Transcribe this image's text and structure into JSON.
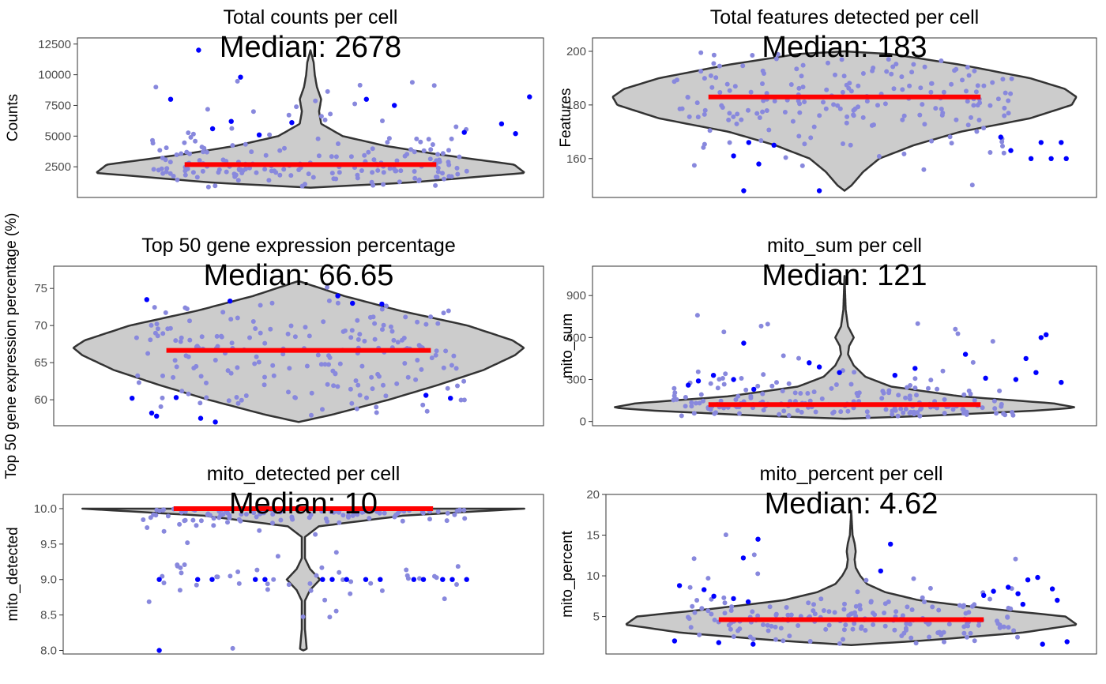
{
  "colors": {
    "violin_fill": "#cccccc",
    "violin_stroke": "#333333",
    "median_line": "#ff0000",
    "outlier_point": "#0000ff",
    "inlier_point": "#8888dd",
    "panel_border": "#333333"
  },
  "chart_data": [
    {
      "type": "violin",
      "title": "Total counts per cell",
      "ylabel": "Counts",
      "median_label": "Median: 2678",
      "median": 2678,
      "ylim": [
        0,
        13000
      ],
      "yticks": [
        2500,
        5000,
        7500,
        10000,
        12500
      ],
      "ytick_labels": [
        "2500",
        "5000",
        "7500",
        "10000",
        "12500"
      ],
      "density_profile": [
        [
          800,
          0.0
        ],
        [
          1200,
          0.45
        ],
        [
          2000,
          1.0
        ],
        [
          2678,
          0.95
        ],
        [
          3500,
          0.6
        ],
        [
          4200,
          0.35
        ],
        [
          5000,
          0.15
        ],
        [
          6000,
          0.05
        ],
        [
          7000,
          0.04
        ],
        [
          8000,
          0.05
        ],
        [
          9000,
          0.03
        ],
        [
          10000,
          0.02
        ],
        [
          11000,
          0.015
        ],
        [
          12000,
          0.0
        ]
      ],
      "outliers": [
        [
          -0.24,
          12000
        ],
        [
          -0.15,
          9800
        ],
        [
          0.12,
          8000
        ],
        [
          0.47,
          8200
        ],
        [
          -0.11,
          5100
        ],
        [
          -0.21,
          5600
        ],
        [
          -0.17,
          6200
        ],
        [
          -0.04,
          6100
        ],
        [
          0.41,
          6000
        ],
        [
          0.44,
          5200
        ],
        [
          0.33,
          5300
        ],
        [
          0.18,
          7500
        ],
        [
          -0.3,
          8000
        ]
      ],
      "inlier_count": 190
    },
    {
      "type": "violin",
      "title": "Total features detected per cell",
      "ylabel": "Features",
      "median_label": "Median: 183",
      "median": 183,
      "ylim": [
        145.5,
        205
      ],
      "yticks": [
        160,
        180,
        200
      ],
      "ytick_labels": [
        "160",
        "180",
        "200"
      ],
      "density_profile": [
        [
          148,
          0.0
        ],
        [
          150,
          0.03
        ],
        [
          155,
          0.08
        ],
        [
          160,
          0.15
        ],
        [
          165,
          0.3
        ],
        [
          170,
          0.5
        ],
        [
          175,
          0.8
        ],
        [
          180,
          0.98
        ],
        [
          183,
          1.0
        ],
        [
          186,
          0.95
        ],
        [
          190,
          0.8
        ],
        [
          195,
          0.5
        ],
        [
          199,
          0.2
        ],
        [
          200,
          0.0
        ]
      ],
      "outliers": [
        [
          -0.2,
          148
        ],
        [
          -0.05,
          148
        ],
        [
          -0.17,
          158
        ],
        [
          -0.22,
          161
        ],
        [
          -0.14,
          165
        ],
        [
          -0.19,
          166
        ],
        [
          0.37,
          160
        ],
        [
          0.41,
          160
        ],
        [
          0.44,
          160
        ],
        [
          0.33,
          163
        ],
        [
          0.39,
          166
        ],
        [
          0.43,
          166
        ],
        [
          0.31,
          168
        ]
      ],
      "inlier_count": 190
    },
    {
      "type": "violin",
      "title": "Top 50 gene expression percentage",
      "ylabel": "Top 50 gene expression percentage (%)",
      "median_label": "Median: 66.65",
      "median": 66.65,
      "ylim": [
        56.5,
        78.0
      ],
      "yticks": [
        60,
        65,
        70,
        75
      ],
      "ytick_labels": [
        "60",
        "65",
        "70",
        "75"
      ],
      "density_profile": [
        [
          57,
          0.0
        ],
        [
          58,
          0.15
        ],
        [
          60,
          0.4
        ],
        [
          62,
          0.62
        ],
        [
          64,
          0.82
        ],
        [
          66,
          0.96
        ],
        [
          67,
          1.0
        ],
        [
          68,
          0.95
        ],
        [
          70,
          0.75
        ],
        [
          72,
          0.45
        ],
        [
          74,
          0.2
        ],
        [
          75,
          0.1
        ],
        [
          76,
          0.0
        ]
      ],
      "outliers": [
        [
          -0.34,
          60.2
        ],
        [
          -0.3,
          58.2
        ],
        [
          -0.29,
          57.8
        ],
        [
          -0.2,
          57.5
        ],
        [
          -0.17,
          57.0
        ],
        [
          -0.25,
          60.3
        ],
        [
          0.26,
          60.6
        ],
        [
          0.31,
          60.2
        ],
        [
          -0.31,
          73.5
        ],
        [
          -0.14,
          73.3
        ],
        [
          0.08,
          74.0
        ],
        [
          0.11,
          73.0
        ],
        [
          0.17,
          72.9
        ]
      ],
      "inlier_count": 190
    },
    {
      "type": "violin",
      "title": "mito_sum per cell",
      "ylabel": "mito_sum",
      "median_label": "Median: 121",
      "median": 121,
      "ylim": [
        -30,
        1110
      ],
      "yticks": [
        0,
        300,
        600,
        900
      ],
      "ytick_labels": [
        "0",
        "300",
        "600",
        "900"
      ],
      "density_profile": [
        [
          20,
          0.0
        ],
        [
          40,
          0.35
        ],
        [
          80,
          0.85
        ],
        [
          100,
          1.0
        ],
        [
          130,
          0.9
        ],
        [
          180,
          0.5
        ],
        [
          250,
          0.2
        ],
        [
          320,
          0.09
        ],
        [
          400,
          0.04
        ],
        [
          480,
          0.015
        ],
        [
          540,
          0.02
        ],
        [
          600,
          0.04
        ],
        [
          680,
          0.015
        ],
        [
          800,
          0.005
        ],
        [
          1040,
          0.0
        ]
      ],
      "outliers": [
        [
          -0.31,
          260
        ],
        [
          -0.29,
          290
        ],
        [
          -0.26,
          330
        ],
        [
          -0.22,
          300
        ],
        [
          -0.2,
          560
        ],
        [
          -0.18,
          230
        ],
        [
          -0.07,
          420
        ],
        [
          -0.05,
          390
        ],
        [
          -0.01,
          350
        ],
        [
          0.1,
          330
        ],
        [
          0.14,
          380
        ],
        [
          0.24,
          480
        ],
        [
          0.28,
          310
        ],
        [
          0.36,
          450
        ],
        [
          0.39,
          600
        ],
        [
          0.4,
          620
        ],
        [
          0.38,
          350
        ],
        [
          0.43,
          280
        ],
        [
          0.34,
          300
        ]
      ],
      "inlier_count": 185
    },
    {
      "type": "violin",
      "title": "mito_detected per cell",
      "ylabel": "mito_detected",
      "median_label": "Median: 10",
      "median": 10,
      "ylim": [
        7.95,
        10.2
      ],
      "yticks": [
        8.0,
        8.5,
        9.0,
        9.5,
        10.0
      ],
      "ytick_labels": [
        "8.0",
        "8.5",
        "9.0",
        "9.5",
        "10.0"
      ],
      "density_profile": [
        [
          8.0,
          0.0
        ],
        [
          8.02,
          0.015
        ],
        [
          8.3,
          0.007
        ],
        [
          8.7,
          0.007
        ],
        [
          8.85,
          0.03
        ],
        [
          9.0,
          0.075
        ],
        [
          9.15,
          0.03
        ],
        [
          9.3,
          0.007
        ],
        [
          9.6,
          0.007
        ],
        [
          9.75,
          0.07
        ],
        [
          9.9,
          0.45
        ],
        [
          10.0,
          1.0
        ]
      ],
      "outliers": [
        [
          -0.3,
          9.0
        ],
        [
          -0.22,
          9.0
        ],
        [
          -0.19,
          9.0
        ],
        [
          -0.1,
          9.0
        ],
        [
          -0.08,
          9.0
        ],
        [
          0.04,
          9.0
        ],
        [
          0.06,
          9.0
        ],
        [
          0.09,
          9.0
        ],
        [
          0.13,
          9.0
        ],
        [
          0.16,
          9.0
        ],
        [
          0.23,
          9.0
        ],
        [
          0.25,
          9.0
        ],
        [
          0.29,
          9.0
        ],
        [
          0.31,
          9.0
        ],
        [
          0.34,
          9.0
        ],
        [
          -0.3,
          8.0
        ]
      ],
      "inlier_count": 160
    },
    {
      "type": "violin",
      "title": "mito_percent per cell",
      "ylabel": "mito_percent",
      "median_label": "Median: 4.62",
      "median": 4.62,
      "ylim": [
        0.4,
        20.0
      ],
      "yticks": [
        5,
        10,
        15,
        20
      ],
      "ytick_labels": [
        "5",
        "10",
        "15",
        "20"
      ],
      "density_profile": [
        [
          1.5,
          0.0
        ],
        [
          2.0,
          0.3
        ],
        [
          3.0,
          0.75
        ],
        [
          4.0,
          1.0
        ],
        [
          5.0,
          0.95
        ],
        [
          6.0,
          0.6
        ],
        [
          7.0,
          0.3
        ],
        [
          8.0,
          0.15
        ],
        [
          9.0,
          0.07
        ],
        [
          10.0,
          0.04
        ],
        [
          11.0,
          0.02
        ],
        [
          12.0,
          0.015
        ],
        [
          13.0,
          0.02
        ],
        [
          14.0,
          0.015
        ],
        [
          15.0,
          0.006
        ],
        [
          18.0,
          0.0
        ]
      ],
      "outliers": [
        [
          -0.19,
          14.5
        ],
        [
          -0.22,
          12.2
        ],
        [
          0.08,
          13.9
        ],
        [
          0.06,
          10.6
        ],
        [
          -0.35,
          8.8
        ],
        [
          -0.3,
          8.3
        ],
        [
          -0.28,
          7.5
        ],
        [
          -0.24,
          7.2
        ],
        [
          -0.21,
          6.8
        ],
        [
          -0.36,
          2.0
        ],
        [
          -0.27,
          1.8
        ],
        [
          -0.2,
          1.6
        ],
        [
          0.27,
          7.6
        ],
        [
          0.29,
          8.1
        ],
        [
          0.32,
          8.6
        ],
        [
          0.34,
          7.8
        ],
        [
          0.36,
          9.5
        ],
        [
          0.38,
          9.8
        ],
        [
          0.41,
          8.4
        ],
        [
          0.42,
          7.0
        ],
        [
          0.35,
          6.5
        ],
        [
          0.39,
          1.6
        ],
        [
          0.44,
          1.9
        ]
      ],
      "inlier_count": 180
    }
  ]
}
